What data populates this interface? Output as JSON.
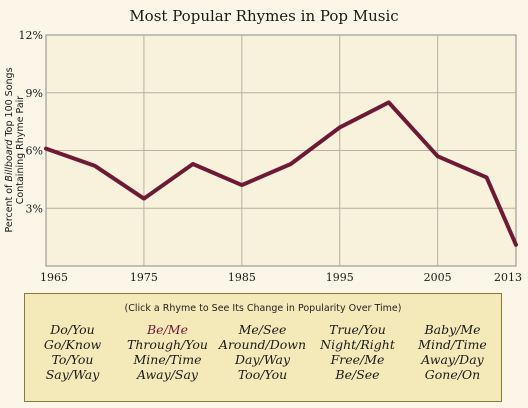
{
  "chart_data": {
    "type": "line",
    "title": "Most Popular Rhymes in Pop Music",
    "ylabel_line1_pre": "Percent of ",
    "ylabel_line1_italic": "Billboard",
    "ylabel_line1_post": " Top 100 Songs",
    "ylabel_line2": "Containing Rhyme Pair",
    "x_ticks": [
      1965,
      1975,
      1985,
      1995,
      2005,
      2013
    ],
    "y_ticks": [
      {
        "value": 3,
        "label": "3%"
      },
      {
        "value": 6,
        "label": "6%"
      },
      {
        "value": 9,
        "label": "9%"
      },
      {
        "value": 12,
        "label": "12%"
      }
    ],
    "xlim": [
      1965,
      2013
    ],
    "ylim": [
      0,
      12
    ],
    "grid": true,
    "series": [
      {
        "name": "Be/Me",
        "color": "#6e1a37",
        "x": [
          1965,
          1970,
          1975,
          1980,
          1985,
          1990,
          1995,
          2000,
          2005,
          2010,
          2013
        ],
        "y": [
          6.1,
          5.2,
          3.5,
          5.3,
          4.2,
          5.3,
          7.2,
          8.5,
          5.7,
          4.6,
          1.1
        ]
      }
    ]
  },
  "panel": {
    "instructions": "(Click a Rhyme to See Its Change in Popularity Over Time)",
    "selected": "Be/Me",
    "rhymes": [
      "Do/You",
      "Be/Me",
      "Me/See",
      "True/You",
      "Baby/Me",
      "Go/Know",
      "Through/You",
      "Around/Down",
      "Night/Right",
      "Mind/Time",
      "To/You",
      "Mine/Time",
      "Day/Way",
      "Free/Me",
      "Away/Day",
      "Say/Way",
      "Away/Say",
      "Too/You",
      "Be/See",
      "Gone/On"
    ]
  }
}
